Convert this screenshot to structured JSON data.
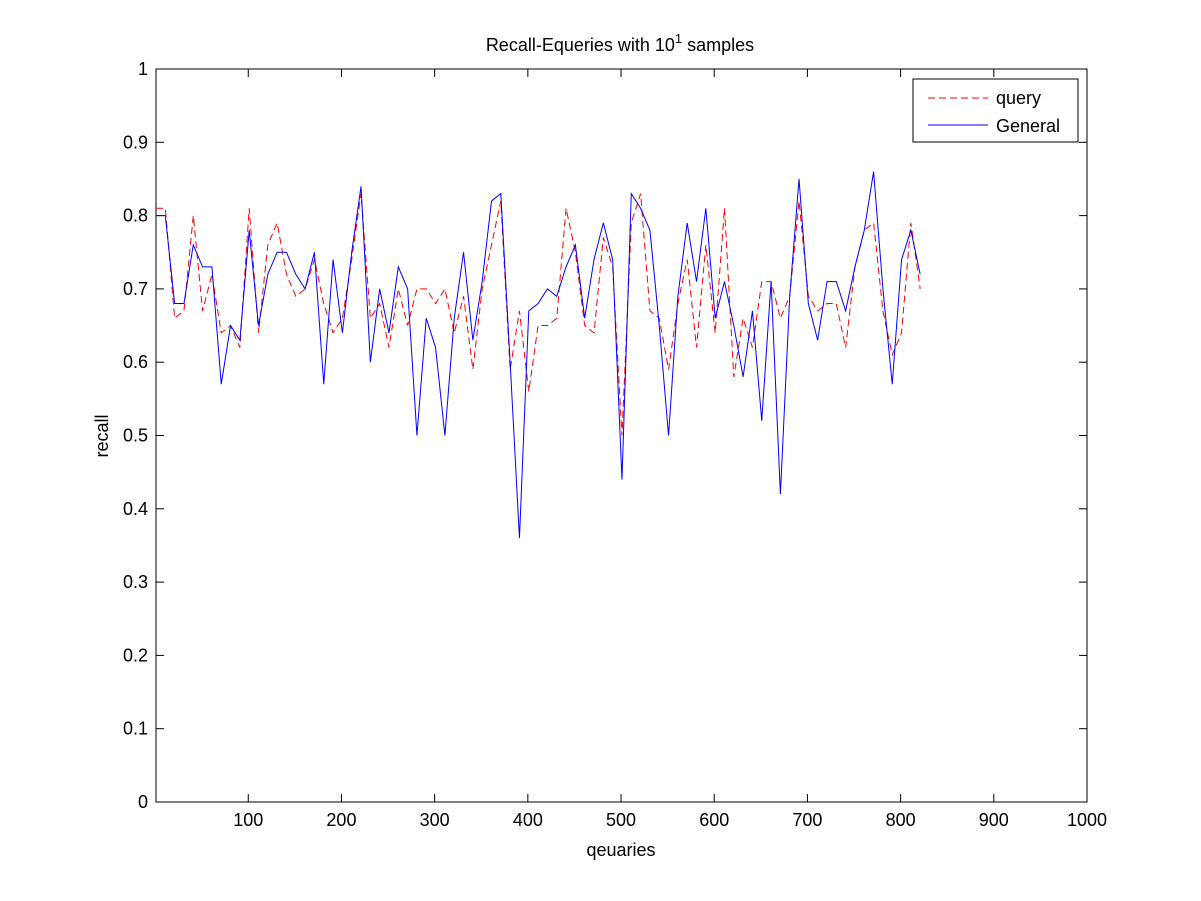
{
  "chart_data": {
    "type": "line",
    "title": {
      "prefix": "Recall-Equeries with 10",
      "superscript": "1",
      "suffix": " samples"
    },
    "xlabel": "qeuaries",
    "ylabel": "recall",
    "xlim": [
      1,
      1000
    ],
    "ylim": [
      0,
      1
    ],
    "xticks": [
      100,
      200,
      300,
      400,
      500,
      600,
      700,
      800,
      900,
      1000
    ],
    "yticks": [
      0,
      0.1,
      0.2,
      0.3,
      0.4,
      0.5,
      0.6,
      0.7,
      0.8,
      0.9,
      1
    ],
    "grid": false,
    "legend_position": "top-right",
    "x": [
      1,
      11,
      21,
      31,
      41,
      51,
      61,
      71,
      81,
      91,
      101,
      111,
      121,
      131,
      141,
      151,
      161,
      171,
      181,
      191,
      201,
      211,
      221,
      231,
      241,
      251,
      261,
      271,
      281,
      291,
      301,
      311,
      321,
      331,
      341,
      351,
      361,
      371,
      381,
      391,
      401,
      411,
      421,
      431,
      441,
      451,
      461,
      471,
      481,
      491,
      501,
      511,
      521,
      531,
      541,
      551,
      561,
      571,
      581,
      591,
      601,
      611,
      621,
      631,
      641,
      651,
      661,
      671,
      681,
      691,
      701,
      711,
      721,
      731,
      741,
      751,
      761,
      771,
      781,
      791,
      801,
      811,
      821
    ],
    "series": [
      {
        "name": "query",
        "color": "#ff0000",
        "style": "dashed",
        "values": [
          0.81,
          0.81,
          0.66,
          0.67,
          0.8,
          0.67,
          0.72,
          0.64,
          0.65,
          0.62,
          0.81,
          0.64,
          0.76,
          0.79,
          0.72,
          0.69,
          0.7,
          0.74,
          0.68,
          0.64,
          0.66,
          0.74,
          0.83,
          0.66,
          0.68,
          0.62,
          0.7,
          0.65,
          0.7,
          0.7,
          0.68,
          0.7,
          0.64,
          0.69,
          0.59,
          0.7,
          0.76,
          0.82,
          0.59,
          0.67,
          0.56,
          0.65,
          0.65,
          0.66,
          0.81,
          0.75,
          0.65,
          0.64,
          0.77,
          0.73,
          0.5,
          0.79,
          0.83,
          0.67,
          0.66,
          0.59,
          0.68,
          0.74,
          0.62,
          0.76,
          0.64,
          0.81,
          0.58,
          0.66,
          0.62,
          0.71,
          0.71,
          0.66,
          0.69,
          0.82,
          0.69,
          0.67,
          0.68,
          0.68,
          0.62,
          0.73,
          0.78,
          0.79,
          0.67,
          0.61,
          0.64,
          0.79,
          0.7
        ]
      },
      {
        "name": "General",
        "color": "#0000ff",
        "style": "solid",
        "values": [
          0.8,
          0.8,
          0.68,
          0.68,
          0.76,
          0.73,
          0.73,
          0.57,
          0.65,
          0.63,
          0.78,
          0.65,
          0.72,
          0.75,
          0.75,
          0.72,
          0.7,
          0.75,
          0.57,
          0.74,
          0.64,
          0.75,
          0.84,
          0.6,
          0.7,
          0.64,
          0.73,
          0.7,
          0.5,
          0.66,
          0.62,
          0.5,
          0.66,
          0.75,
          0.63,
          0.71,
          0.82,
          0.83,
          0.6,
          0.36,
          0.67,
          0.68,
          0.7,
          0.69,
          0.73,
          0.76,
          0.66,
          0.74,
          0.79,
          0.74,
          0.44,
          0.83,
          0.81,
          0.78,
          0.65,
          0.5,
          0.69,
          0.79,
          0.71,
          0.81,
          0.66,
          0.71,
          0.65,
          0.58,
          0.67,
          0.52,
          0.71,
          0.42,
          0.69,
          0.85,
          0.68,
          0.63,
          0.71,
          0.71,
          0.67,
          0.73,
          0.78,
          0.86,
          0.7,
          0.57,
          0.74,
          0.78,
          0.72
        ]
      }
    ]
  }
}
